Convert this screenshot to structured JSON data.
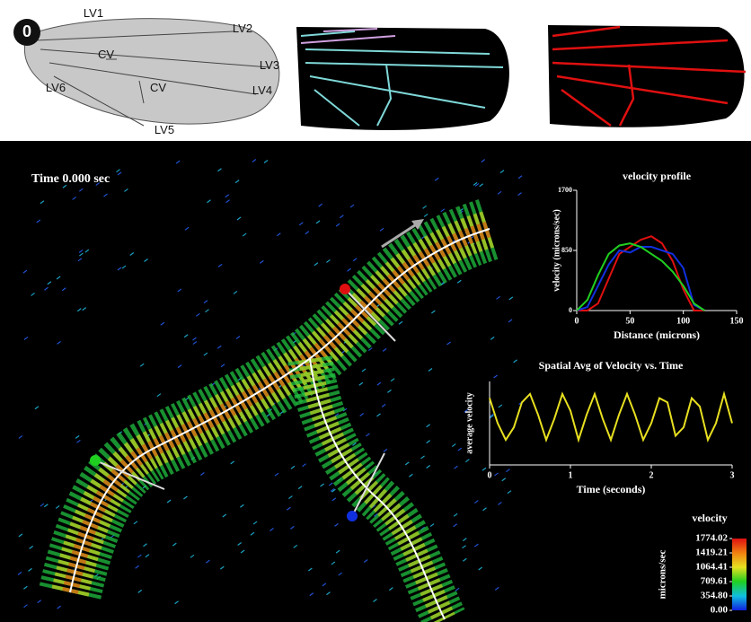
{
  "figure": {
    "badge": "0",
    "wing_labels": [
      "LV1",
      "LV2",
      "CV",
      "LV3",
      "LV6",
      "CV",
      "LV4",
      "LV5"
    ],
    "time_label": "Time 0.000 sec"
  },
  "chart_data": [
    {
      "type": "line",
      "title": "velocity profile",
      "xlabel": "Distance (microns)",
      "ylabel": "velocity (microns/sec)",
      "x": [
        0,
        10,
        20,
        30,
        40,
        50,
        60,
        70,
        80,
        90,
        100,
        110,
        120
      ],
      "series": [
        {
          "color": "#e01010",
          "values": [
            0,
            0,
            100,
            450,
            800,
            900,
            1000,
            1050,
            950,
            700,
            300,
            0,
            0
          ]
        },
        {
          "color": "#1030e0",
          "values": [
            0,
            50,
            350,
            650,
            850,
            820,
            900,
            900,
            850,
            800,
            600,
            80,
            0
          ]
        },
        {
          "color": "#20d020",
          "values": [
            0,
            150,
            500,
            800,
            920,
            950,
            900,
            800,
            700,
            550,
            350,
            100,
            0
          ]
        }
      ],
      "xlim": [
        0,
        150
      ],
      "xticks": [
        0,
        50,
        100,
        150
      ],
      "ylim": [
        0,
        1700
      ],
      "yticks": [
        0,
        850,
        1700
      ]
    },
    {
      "type": "line",
      "title": "Spatial Avg of Velocity vs. Time",
      "xlabel": "Time (seconds)",
      "ylabel": "average velocity",
      "x": [
        0,
        0.1,
        0.2,
        0.3,
        0.4,
        0.5,
        0.6,
        0.7,
        0.8,
        0.9,
        1.0,
        1.1,
        1.2,
        1.3,
        1.4,
        1.5,
        1.6,
        1.7,
        1.8,
        1.9,
        2.0,
        2.1,
        2.2,
        2.3,
        2.4,
        2.5,
        2.6,
        2.7,
        2.8,
        2.9,
        3.0
      ],
      "series": [
        {
          "color": "#e8e020",
          "values": [
            0.8,
            0.5,
            0.3,
            0.45,
            0.75,
            0.85,
            0.6,
            0.3,
            0.55,
            0.85,
            0.65,
            0.3,
            0.6,
            0.85,
            0.55,
            0.3,
            0.6,
            0.85,
            0.6,
            0.3,
            0.5,
            0.8,
            0.75,
            0.35,
            0.45,
            0.8,
            0.7,
            0.3,
            0.5,
            0.85,
            0.5
          ]
        }
      ],
      "xlim": [
        0,
        3
      ],
      "xticks": [
        0,
        1,
        2,
        3
      ],
      "ylim": [
        0,
        1
      ]
    }
  ],
  "colorbar": {
    "title": "velocity",
    "label": "microns/sec",
    "lim": [
      0,
      1774.02
    ],
    "colors": [
      "#1020e0",
      "#10c0e0",
      "#20d020",
      "#e8e020",
      "#f08010",
      "#e01010"
    ],
    "ticks": [
      1774.02,
      1419.21,
      1064.41,
      709.61,
      {
        "value": 354.8,
        "label": "354.80"
      },
      {
        "value": 0,
        "label": "0.00"
      }
    ]
  }
}
